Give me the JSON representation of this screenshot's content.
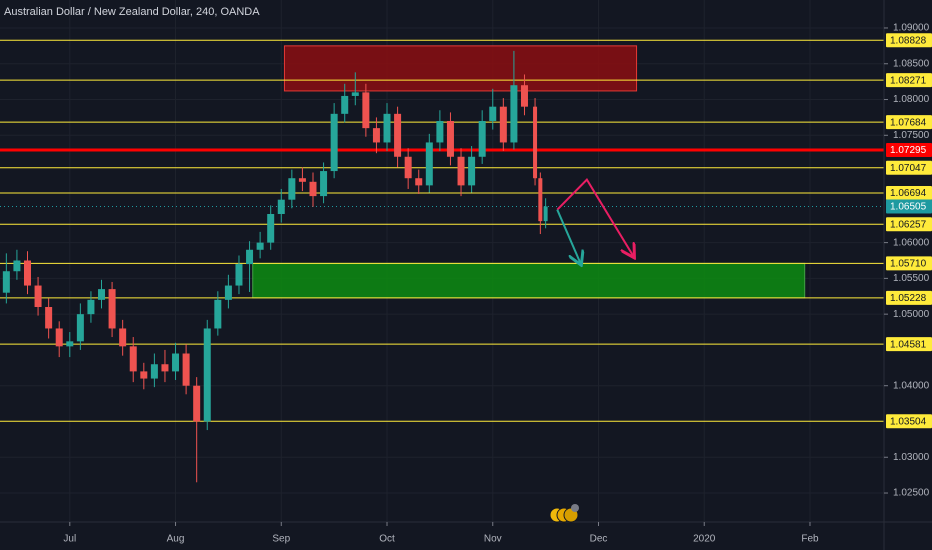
{
  "chart_data": {
    "type": "candlestick",
    "title": "Australian Dollar / New Zealand Dollar, 240, OANDA",
    "x": [
      6.4,
      6.5,
      6.6,
      6.7,
      6.8,
      6.9,
      7.0,
      7.1,
      7.2,
      7.3,
      7.4,
      7.5,
      7.6,
      7.7,
      7.8,
      7.9,
      8.0,
      8.1,
      8.2,
      8.3,
      8.4,
      8.5,
      8.6,
      8.7,
      8.8,
      8.9,
      9.0,
      9.1,
      9.2,
      9.3,
      9.4,
      9.5,
      9.6,
      9.7,
      9.8,
      9.9,
      10.0,
      10.1,
      10.2,
      10.3,
      10.4,
      10.5,
      10.6,
      10.7,
      10.8,
      10.9,
      11.0,
      11.1,
      11.2,
      11.3,
      11.4,
      11.45,
      11.5
    ],
    "open": [
      1.053,
      1.056,
      1.0575,
      1.054,
      1.051,
      1.048,
      1.0455,
      1.0462,
      1.05,
      1.052,
      1.0535,
      1.048,
      1.0455,
      1.042,
      1.041,
      1.043,
      1.042,
      1.0445,
      1.04,
      1.035,
      1.048,
      1.052,
      1.054,
      1.057,
      1.059,
      1.06,
      1.064,
      1.066,
      1.069,
      1.0685,
      1.0665,
      1.07,
      1.078,
      1.0805,
      1.081,
      1.076,
      1.074,
      1.078,
      1.072,
      1.069,
      1.068,
      1.074,
      1.077,
      1.072,
      1.068,
      1.072,
      1.077,
      1.079,
      1.074,
      1.082,
      1.079,
      1.069,
      1.063
    ],
    "high": [
      1.0585,
      1.059,
      1.0588,
      1.0552,
      1.0522,
      1.049,
      1.0475,
      1.0515,
      1.0532,
      1.0548,
      1.0545,
      1.0492,
      1.0468,
      1.0432,
      1.0445,
      1.045,
      1.046,
      1.0458,
      1.0412,
      1.0492,
      1.0532,
      1.0555,
      1.0582,
      1.0602,
      1.0615,
      1.0652,
      1.0675,
      1.0702,
      1.0705,
      1.0698,
      1.0712,
      1.0795,
      1.0822,
      1.0838,
      1.0822,
      1.0775,
      1.0795,
      1.079,
      1.0732,
      1.0702,
      1.0752,
      1.0785,
      1.0782,
      1.0732,
      1.0735,
      1.0785,
      1.0815,
      1.0802,
      1.0868,
      1.0835,
      1.0802,
      1.0698,
      1.0662
    ],
    "low": [
      1.0515,
      1.0548,
      1.0528,
      1.0498,
      1.0466,
      1.044,
      1.044,
      1.045,
      1.0488,
      1.0508,
      1.0468,
      1.0442,
      1.0405,
      1.0395,
      1.0398,
      1.0405,
      1.0408,
      1.0388,
      1.0265,
      1.0338,
      1.047,
      1.0508,
      1.0528,
      1.0531,
      1.0578,
      1.059,
      1.0628,
      1.0648,
      1.0672,
      1.065,
      1.0655,
      1.069,
      1.0768,
      1.0792,
      1.0748,
      1.0725,
      1.0728,
      1.0705,
      1.0675,
      1.0668,
      1.067,
      1.0728,
      1.0708,
      1.0665,
      1.067,
      1.071,
      1.0758,
      1.0728,
      1.073,
      1.0778,
      1.068,
      1.0612,
      1.062
    ],
    "close": [
      1.056,
      1.0575,
      1.054,
      1.051,
      1.048,
      1.0455,
      1.0462,
      1.05,
      1.052,
      1.0535,
      1.048,
      1.0455,
      1.042,
      1.041,
      1.043,
      1.042,
      1.0445,
      1.04,
      1.035,
      1.048,
      1.052,
      1.054,
      1.057,
      1.059,
      1.06,
      1.064,
      1.066,
      1.069,
      1.0685,
      1.0665,
      1.07,
      1.078,
      1.0805,
      1.081,
      1.076,
      1.074,
      1.078,
      1.072,
      1.069,
      1.068,
      1.074,
      1.077,
      1.072,
      1.068,
      1.072,
      1.077,
      1.079,
      1.074,
      1.082,
      1.079,
      1.069,
      1.063,
      1.06505
    ],
    "up_color": "#26a69a",
    "down_color": "#ef5350",
    "xlim": [
      6.34,
      14.7
    ],
    "ylim": [
      1.02095,
      1.09391
    ],
    "xticks": [
      {
        "value": 7,
        "label": "Jul"
      },
      {
        "value": 8,
        "label": "Aug"
      },
      {
        "value": 9,
        "label": "Sep"
      },
      {
        "value": 10,
        "label": "Oct"
      },
      {
        "value": 11,
        "label": "Nov"
      },
      {
        "value": 12,
        "label": "Dec"
      },
      {
        "value": 13,
        "label": "2020"
      },
      {
        "value": 14,
        "label": "Feb"
      }
    ],
    "yticks": [
      {
        "value": 1.09,
        "label": "1.09000"
      },
      {
        "value": 1.085,
        "label": "1.08500"
      },
      {
        "value": 1.08,
        "label": "1.08000"
      },
      {
        "value": 1.075,
        "label": "1.07500"
      },
      {
        "value": 1.06,
        "label": "1.06000"
      },
      {
        "value": 1.055,
        "label": "1.05500"
      },
      {
        "value": 1.05,
        "label": "1.05000"
      },
      {
        "value": 1.04,
        "label": "1.04000"
      },
      {
        "value": 1.03,
        "label": "1.03000"
      },
      {
        "value": 1.025,
        "label": "1.02500"
      }
    ],
    "grid": true,
    "levels": {
      "values": [
        1.08828,
        1.08271,
        1.07684,
        1.07047,
        1.06694,
        1.06257,
        1.0571,
        1.05228,
        1.04581,
        1.03504
      ],
      "value_labels": [
        "1.08828",
        "1.08271",
        "1.07684",
        "1.07047",
        "1.06694",
        "1.06257",
        "1.05710",
        "1.05228",
        "1.04581",
        "1.03504"
      ],
      "color": "#ffeb3b"
    },
    "key_level": {
      "value": 1.07295,
      "color": "#ff0000"
    },
    "last_price": {
      "value": 1.06505,
      "color": "#1e9aa0"
    },
    "zones": [
      {
        "color": "#8b0e12",
        "border": "#e53935",
        "x": [
          9.03,
          12.36
        ],
        "y": [
          1.0812,
          1.0875
        ]
      },
      {
        "color": "#0d8c12",
        "border": "#43a047",
        "x": [
          8.73,
          13.95
        ],
        "y": [
          1.05228,
          1.0571
        ]
      }
    ],
    "projections": [
      {
        "color": "#e91e63",
        "x": [
          11.61,
          11.89,
          12.33
        ],
        "y": [
          1.0646,
          1.0688,
          1.0581
        ]
      },
      {
        "color": "#26a69a",
        "x": [
          11.61,
          11.83
        ],
        "y": [
          1.0646,
          1.0571
        ]
      }
    ]
  }
}
